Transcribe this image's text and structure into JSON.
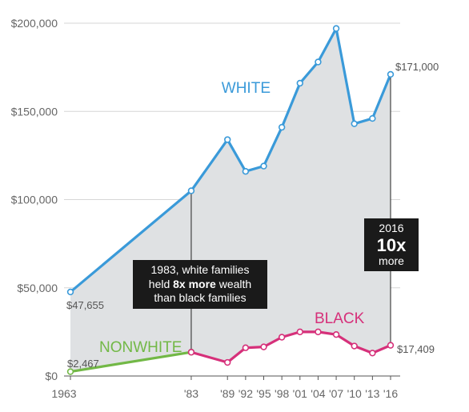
{
  "chart_data": {
    "type": "line",
    "x_tick_labels": [
      "1963",
      "'83",
      "'89",
      "'92",
      "'95",
      "'98",
      "'01",
      "'04",
      "'07",
      "'10",
      "'13",
      "'16"
    ],
    "y_tick_labels": [
      "$0",
      "$50,000",
      "$100,000",
      "$150,000",
      "$200,000"
    ],
    "ylim": [
      0,
      200000
    ],
    "grid": "horizontal",
    "series": [
      {
        "name": "WHITE",
        "color": "#3a9ad9",
        "points": [
          {
            "x": 1963,
            "y": 47655
          },
          {
            "x": 1983,
            "y": 105000
          },
          {
            "x": 1989,
            "y": 134000
          },
          {
            "x": 1992,
            "y": 116000
          },
          {
            "x": 1995,
            "y": 119000
          },
          {
            "x": 1998,
            "y": 141000
          },
          {
            "x": 2001,
            "y": 166000
          },
          {
            "x": 2004,
            "y": 178000
          },
          {
            "x": 2007,
            "y": 197000
          },
          {
            "x": 2010,
            "y": 143000
          },
          {
            "x": 2013,
            "y": 146000
          },
          {
            "x": 2016,
            "y": 171000
          }
        ]
      },
      {
        "name": "NONWHITE",
        "color": "#72b846",
        "points": [
          {
            "x": 1963,
            "y": 2467
          },
          {
            "x": 1983,
            "y": 13500
          }
        ]
      },
      {
        "name": "BLACK",
        "color": "#d6307a",
        "points": [
          {
            "x": 1983,
            "y": 13500
          },
          {
            "x": 1989,
            "y": 7700
          },
          {
            "x": 1992,
            "y": 16000
          },
          {
            "x": 1995,
            "y": 16500
          },
          {
            "x": 1998,
            "y": 22000
          },
          {
            "x": 2001,
            "y": 25000
          },
          {
            "x": 2004,
            "y": 25000
          },
          {
            "x": 2007,
            "y": 23500
          },
          {
            "x": 2010,
            "y": 17000
          },
          {
            "x": 2013,
            "y": 13000
          },
          {
            "x": 2016,
            "y": 17409
          }
        ]
      }
    ],
    "value_labels": {
      "white_1963": "$47,655",
      "white_2016": "$171,000",
      "nonwhite_1963": "$2,467",
      "black_2016": "$17,409"
    },
    "annotations": {
      "callout_1983_lines": [
        "1983, white families",
        "held ",
        "8x more",
        " wealth",
        "than black families"
      ],
      "callout_2016": {
        "year": "2016",
        "big": "10x",
        "small": "more"
      }
    },
    "colors": {
      "gap_fill": "#dfe1e3",
      "grid": "#d6d6d6",
      "axis": "#555555"
    }
  }
}
